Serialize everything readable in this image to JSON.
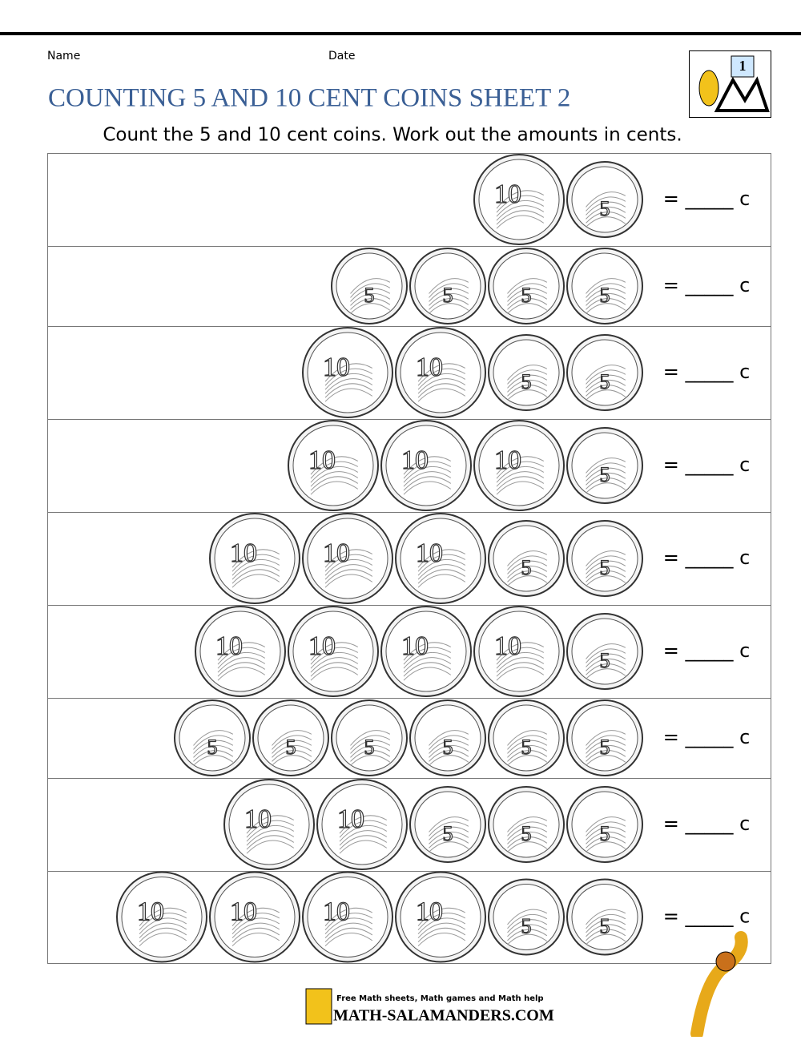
{
  "header": {
    "name_label": "Name",
    "date_label": "Date",
    "logo_badge": "1",
    "title": "COUNTING 5 AND 10 CENT COINS SHEET 2",
    "instruction": "Count the 5 and 10 cent coins. Work out the amounts in cents."
  },
  "rows": [
    {
      "coins": [
        "10",
        "5"
      ],
      "answer": "= _____ c"
    },
    {
      "coins": [
        "5",
        "5",
        "5",
        "5"
      ],
      "answer": "= _____ c"
    },
    {
      "coins": [
        "10",
        "10",
        "5",
        "5"
      ],
      "answer": "= _____ c"
    },
    {
      "coins": [
        "10",
        "10",
        "10",
        "5"
      ],
      "answer": "= _____ c"
    },
    {
      "coins": [
        "10",
        "10",
        "10",
        "5",
        "5"
      ],
      "answer": "= _____ c"
    },
    {
      "coins": [
        "10",
        "10",
        "10",
        "10",
        "5"
      ],
      "answer": "= _____ c"
    },
    {
      "coins": [
        "5",
        "5",
        "5",
        "5",
        "5",
        "5"
      ],
      "answer": "= _____ c"
    },
    {
      "coins": [
        "10",
        "10",
        "5",
        "5",
        "5"
      ],
      "answer": "= _____ c"
    },
    {
      "coins": [
        "10",
        "10",
        "10",
        "10",
        "5",
        "5"
      ],
      "answer": "= _____ c"
    }
  ],
  "footer": {
    "tagline": "Free Math sheets, Math games and Math help",
    "site": "MATH-SALAMANDERS.COM"
  }
}
